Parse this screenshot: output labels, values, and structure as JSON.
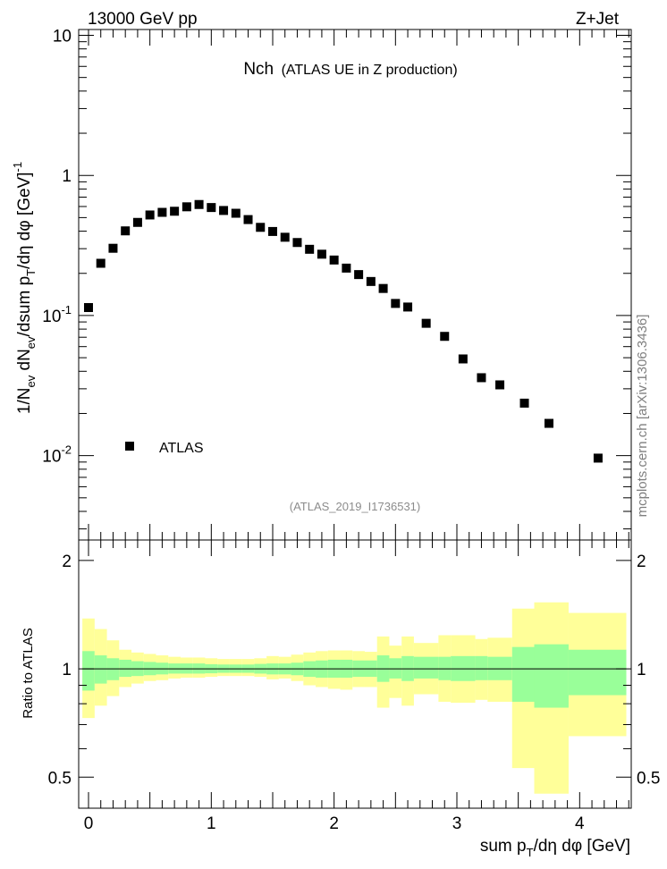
{
  "header": {
    "left": "13000 GeV pp",
    "right": "Z+Jet"
  },
  "plot_title": {
    "main": "Nch",
    "sub": "(ATLAS UE in Z production)"
  },
  "analysis_id": "(ATLAS_2019_I1736531)",
  "side_credit": "mcplots.cern.ch [arXiv:1306.3436]",
  "colors": {
    "marker": "#000000",
    "band_inner": "#99ff99",
    "band_outer": "#ffff99",
    "analysis_text": "#8c8c8c",
    "credit_text": "#7f7f7f"
  },
  "chart_data": [
    {
      "type": "scatter",
      "panel": "main",
      "ylabel": "1/N_ev dN_ev/dsum p_T/dη dφ [GeV]^-1",
      "yscale": "log",
      "ylim": [
        0.0025,
        11
      ],
      "xlim": [
        -0.08,
        4.42
      ],
      "y_ticks": [
        {
          "value": 10,
          "label": "10"
        },
        {
          "value": 1,
          "label": "1"
        },
        {
          "value": 0.1,
          "label": "10",
          "exp": "-1"
        },
        {
          "value": 0.01,
          "label": "10",
          "exp": "-2"
        }
      ],
      "legend": {
        "entries": [
          "ATLAS"
        ],
        "position": "bottom-left"
      },
      "series": [
        {
          "name": "ATLAS",
          "points": [
            {
              "x": 0.0,
              "y": 0.114
            },
            {
              "x": 0.1,
              "y": 0.236
            },
            {
              "x": 0.2,
              "y": 0.302
            },
            {
              "x": 0.3,
              "y": 0.402
            },
            {
              "x": 0.4,
              "y": 0.462
            },
            {
              "x": 0.5,
              "y": 0.522
            },
            {
              "x": 0.6,
              "y": 0.545
            },
            {
              "x": 0.7,
              "y": 0.555
            },
            {
              "x": 0.8,
              "y": 0.597
            },
            {
              "x": 0.9,
              "y": 0.62
            },
            {
              "x": 1.0,
              "y": 0.59
            },
            {
              "x": 1.1,
              "y": 0.562
            },
            {
              "x": 1.2,
              "y": 0.537
            },
            {
              "x": 1.3,
              "y": 0.484
            },
            {
              "x": 1.4,
              "y": 0.426
            },
            {
              "x": 1.5,
              "y": 0.398
            },
            {
              "x": 1.6,
              "y": 0.362
            },
            {
              "x": 1.7,
              "y": 0.332
            },
            {
              "x": 1.8,
              "y": 0.297
            },
            {
              "x": 1.9,
              "y": 0.274
            },
            {
              "x": 2.0,
              "y": 0.249
            },
            {
              "x": 2.1,
              "y": 0.218
            },
            {
              "x": 2.2,
              "y": 0.196
            },
            {
              "x": 2.3,
              "y": 0.175
            },
            {
              "x": 2.4,
              "y": 0.156
            },
            {
              "x": 2.5,
              "y": 0.122
            },
            {
              "x": 2.6,
              "y": 0.115
            },
            {
              "x": 2.75,
              "y": 0.088
            },
            {
              "x": 2.9,
              "y": 0.071
            },
            {
              "x": 3.05,
              "y": 0.049
            },
            {
              "x": 3.2,
              "y": 0.036
            },
            {
              "x": 3.35,
              "y": 0.032
            },
            {
              "x": 3.55,
              "y": 0.0237
            },
            {
              "x": 3.75,
              "y": 0.017
            },
            {
              "x": 4.15,
              "y": 0.0096
            }
          ]
        }
      ]
    },
    {
      "type": "area",
      "panel": "ratio",
      "xlabel": "sum p_T/dη dφ [GeV]",
      "ylabel": "Ratio to ATLAS",
      "ylim": [
        0.41,
        2.28
      ],
      "xlim": [
        -0.08,
        4.42
      ],
      "grid": false,
      "reference_line": 1,
      "x_ticks": [
        0,
        1,
        2,
        3,
        4
      ],
      "y_ticks": [
        {
          "value": 0.5,
          "label": "0.5"
        },
        {
          "value": 1,
          "label": "1"
        },
        {
          "value": 2,
          "label": "2"
        }
      ],
      "bands": [
        {
          "x0": -0.05,
          "x1": 0.05,
          "inner": [
            0.87,
            1.12
          ],
          "outer": [
            0.73,
            1.38
          ]
        },
        {
          "x0": 0.05,
          "x1": 0.15,
          "inner": [
            0.91,
            1.09
          ],
          "outer": [
            0.79,
            1.29
          ]
        },
        {
          "x0": 0.15,
          "x1": 0.25,
          "inner": [
            0.93,
            1.07
          ],
          "outer": [
            0.84,
            1.2
          ]
        },
        {
          "x0": 0.25,
          "x1": 0.35,
          "inner": [
            0.95,
            1.06
          ],
          "outer": [
            0.89,
            1.13
          ]
        },
        {
          "x0": 0.35,
          "x1": 0.45,
          "inner": [
            0.955,
            1.05
          ],
          "outer": [
            0.91,
            1.11
          ]
        },
        {
          "x0": 0.45,
          "x1": 0.55,
          "inner": [
            0.96,
            1.045
          ],
          "outer": [
            0.925,
            1.1
          ]
        },
        {
          "x0": 0.55,
          "x1": 0.65,
          "inner": [
            0.965,
            1.04
          ],
          "outer": [
            0.93,
            1.09
          ]
        },
        {
          "x0": 0.65,
          "x1": 0.75,
          "inner": [
            0.97,
            1.035
          ],
          "outer": [
            0.94,
            1.08
          ]
        },
        {
          "x0": 0.75,
          "x1": 0.85,
          "inner": [
            0.97,
            1.035
          ],
          "outer": [
            0.945,
            1.075
          ]
        },
        {
          "x0": 0.85,
          "x1": 0.95,
          "inner": [
            0.97,
            1.035
          ],
          "outer": [
            0.945,
            1.075
          ]
        },
        {
          "x0": 0.95,
          "x1": 1.05,
          "inner": [
            0.972,
            1.03
          ],
          "outer": [
            0.95,
            1.07
          ]
        },
        {
          "x0": 1.05,
          "x1": 1.15,
          "inner": [
            0.975,
            1.028
          ],
          "outer": [
            0.955,
            1.065
          ]
        },
        {
          "x0": 1.15,
          "x1": 1.25,
          "inner": [
            0.975,
            1.028
          ],
          "outer": [
            0.955,
            1.065
          ]
        },
        {
          "x0": 1.25,
          "x1": 1.35,
          "inner": [
            0.975,
            1.028
          ],
          "outer": [
            0.955,
            1.065
          ]
        },
        {
          "x0": 1.35,
          "x1": 1.45,
          "inner": [
            0.97,
            1.032
          ],
          "outer": [
            0.95,
            1.07
          ]
        },
        {
          "x0": 1.45,
          "x1": 1.55,
          "inner": [
            0.965,
            1.035
          ],
          "outer": [
            0.935,
            1.085
          ]
        },
        {
          "x0": 1.55,
          "x1": 1.65,
          "inner": [
            0.965,
            1.035
          ],
          "outer": [
            0.94,
            1.08
          ]
        },
        {
          "x0": 1.65,
          "x1": 1.75,
          "inner": [
            0.96,
            1.04
          ],
          "outer": [
            0.925,
            1.095
          ]
        },
        {
          "x0": 1.75,
          "x1": 1.85,
          "inner": [
            0.95,
            1.05
          ],
          "outer": [
            0.9,
            1.11
          ]
        },
        {
          "x0": 1.85,
          "x1": 1.95,
          "inner": [
            0.945,
            1.055
          ],
          "outer": [
            0.89,
            1.12
          ]
        },
        {
          "x0": 1.95,
          "x1": 2.05,
          "inner": [
            0.945,
            1.06
          ],
          "outer": [
            0.88,
            1.125
          ]
        },
        {
          "x0": 2.05,
          "x1": 2.15,
          "inner": [
            0.945,
            1.06
          ],
          "outer": [
            0.875,
            1.125
          ]
        },
        {
          "x0": 2.15,
          "x1": 2.25,
          "inner": [
            0.95,
            1.055
          ],
          "outer": [
            0.89,
            1.12
          ]
        },
        {
          "x0": 2.25,
          "x1": 2.35,
          "inner": [
            0.95,
            1.055
          ],
          "outer": [
            0.89,
            1.115
          ]
        },
        {
          "x0": 2.35,
          "x1": 2.45,
          "inner": [
            0.92,
            1.09
          ],
          "outer": [
            0.78,
            1.23
          ]
        },
        {
          "x0": 2.45,
          "x1": 2.55,
          "inner": [
            0.94,
            1.07
          ],
          "outer": [
            0.83,
            1.16
          ]
        },
        {
          "x0": 2.55,
          "x1": 2.65,
          "inner": [
            0.925,
            1.085
          ],
          "outer": [
            0.79,
            1.23
          ]
        },
        {
          "x0": 2.65,
          "x1": 2.85,
          "inner": [
            0.94,
            1.08
          ],
          "outer": [
            0.85,
            1.18
          ]
        },
        {
          "x0": 2.85,
          "x1": 2.95,
          "inner": [
            0.93,
            1.08
          ],
          "outer": [
            0.81,
            1.24
          ]
        },
        {
          "x0": 2.95,
          "x1": 3.15,
          "inner": [
            0.925,
            1.085
          ],
          "outer": [
            0.805,
            1.24
          ]
        },
        {
          "x0": 3.15,
          "x1": 3.25,
          "inner": [
            0.93,
            1.085
          ],
          "outer": [
            0.82,
            1.21
          ]
        },
        {
          "x0": 3.25,
          "x1": 3.45,
          "inner": [
            0.93,
            1.08
          ],
          "outer": [
            0.81,
            1.22
          ]
        },
        {
          "x0": 3.45,
          "x1": 3.63,
          "inner": [
            0.81,
            1.15
          ],
          "outer": [
            0.53,
            1.47
          ]
        },
        {
          "x0": 3.63,
          "x1": 3.91,
          "inner": [
            0.78,
            1.17
          ],
          "outer": [
            0.45,
            1.53
          ]
        },
        {
          "x0": 3.91,
          "x1": 4.38,
          "inner": [
            0.845,
            1.13
          ],
          "outer": [
            0.65,
            1.43
          ]
        }
      ]
    }
  ]
}
